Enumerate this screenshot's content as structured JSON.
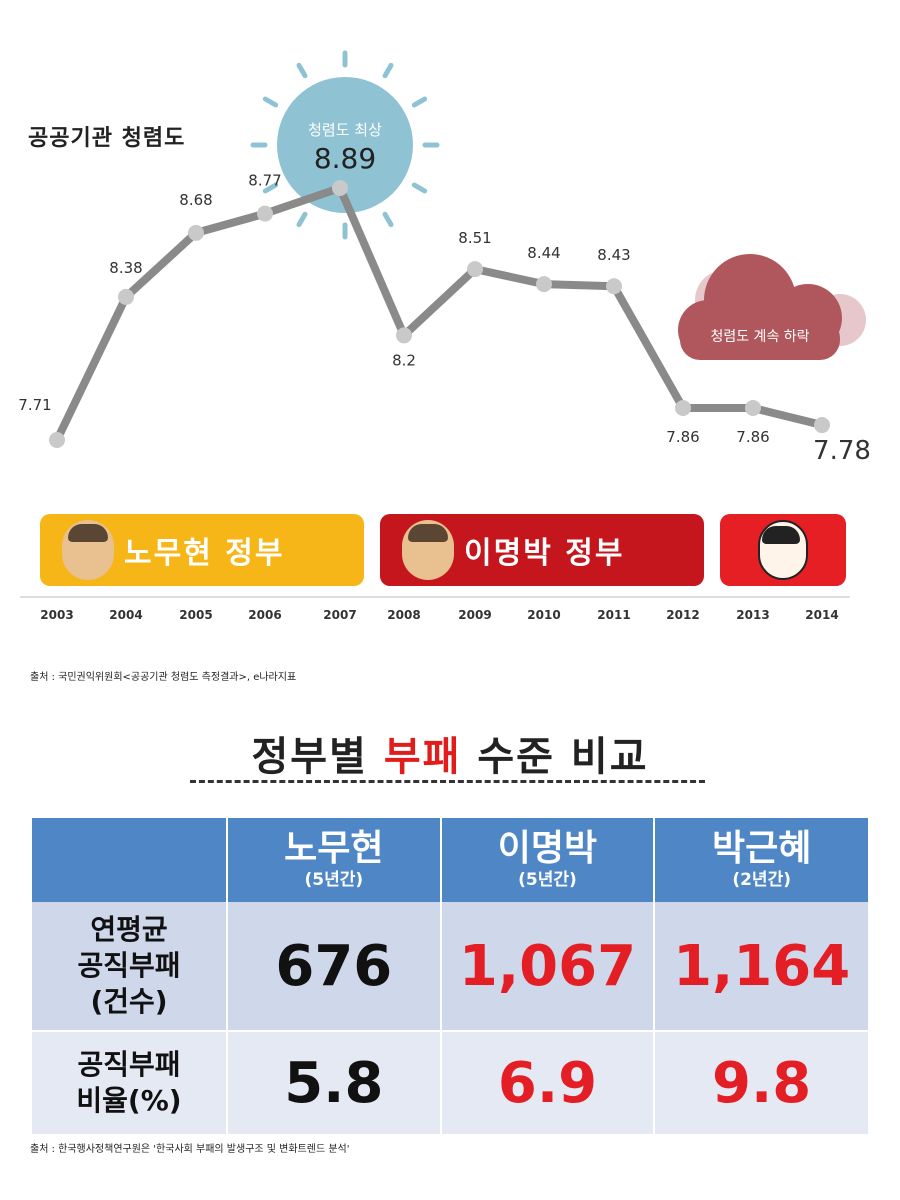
{
  "chart_data": {
    "type": "line",
    "title": "공공기관 청렴도",
    "x": [
      "2003",
      "2004",
      "2005",
      "2006",
      "2007",
      "2008",
      "2009",
      "2010",
      "2011",
      "2012",
      "2013",
      "2014"
    ],
    "series": [
      {
        "values": [
          7.71,
          8.38,
          8.68,
          8.77,
          8.89,
          8.2,
          8.51,
          8.44,
          8.43,
          7.86,
          7.86,
          7.78
        ]
      }
    ],
    "data_labels": [
      "7.71",
      "8.38",
      "8.68",
      "8.77",
      "8.89",
      "8.2",
      "8.51",
      "8.44",
      "8.43",
      "7.86",
      "7.86",
      "7.78"
    ],
    "ylim": [
      7.6,
      9.0
    ],
    "grid": false,
    "colors": {
      "line": "#8a8a8a",
      "marker": "#c9c9c9"
    }
  },
  "annotations": {
    "peak": {
      "label": "청렴도 최상",
      "value": "8.89",
      "color": "#8fc3d4"
    },
    "decline": {
      "label": "청렴도 계속 하락",
      "color": "#b0575d"
    }
  },
  "governments": [
    {
      "id": "roh",
      "label": "노무현 정부",
      "color": "#f6b618"
    },
    {
      "id": "lee",
      "label": "이명박 정부",
      "color": "#c4161c"
    },
    {
      "id": "park",
      "label": "",
      "color": "#e51f24"
    }
  ],
  "source_1": "출처 : 국민권익위원회<공공기관 청렴도 측정결과>, e나라지표",
  "comparison": {
    "title_pre": "정부별 ",
    "title_highlight": "부패",
    "title_post": " 수준 비교",
    "columns": [
      {
        "name": "노무현",
        "period": "(5년간)"
      },
      {
        "name": "이명박",
        "period": "(5년간)"
      },
      {
        "name": "박근혜",
        "period": "(2년간)"
      }
    ],
    "rows": [
      {
        "label_lines": [
          "연평균",
          "공직부패",
          "(건수)"
        ],
        "values": [
          "676",
          "1,067",
          "1,164"
        ]
      },
      {
        "label_lines": [
          "공직부패",
          "비율(%)"
        ],
        "values": [
          "5.8",
          "6.9",
          "9.8"
        ]
      }
    ],
    "colors": {
      "header": "#4f86c6",
      "highlight": "#e31e24"
    }
  },
  "source_2": "출처 : 한국행사정책연구원은 '한국사회 부패의 발생구조 및 변화트렌드 분석'"
}
